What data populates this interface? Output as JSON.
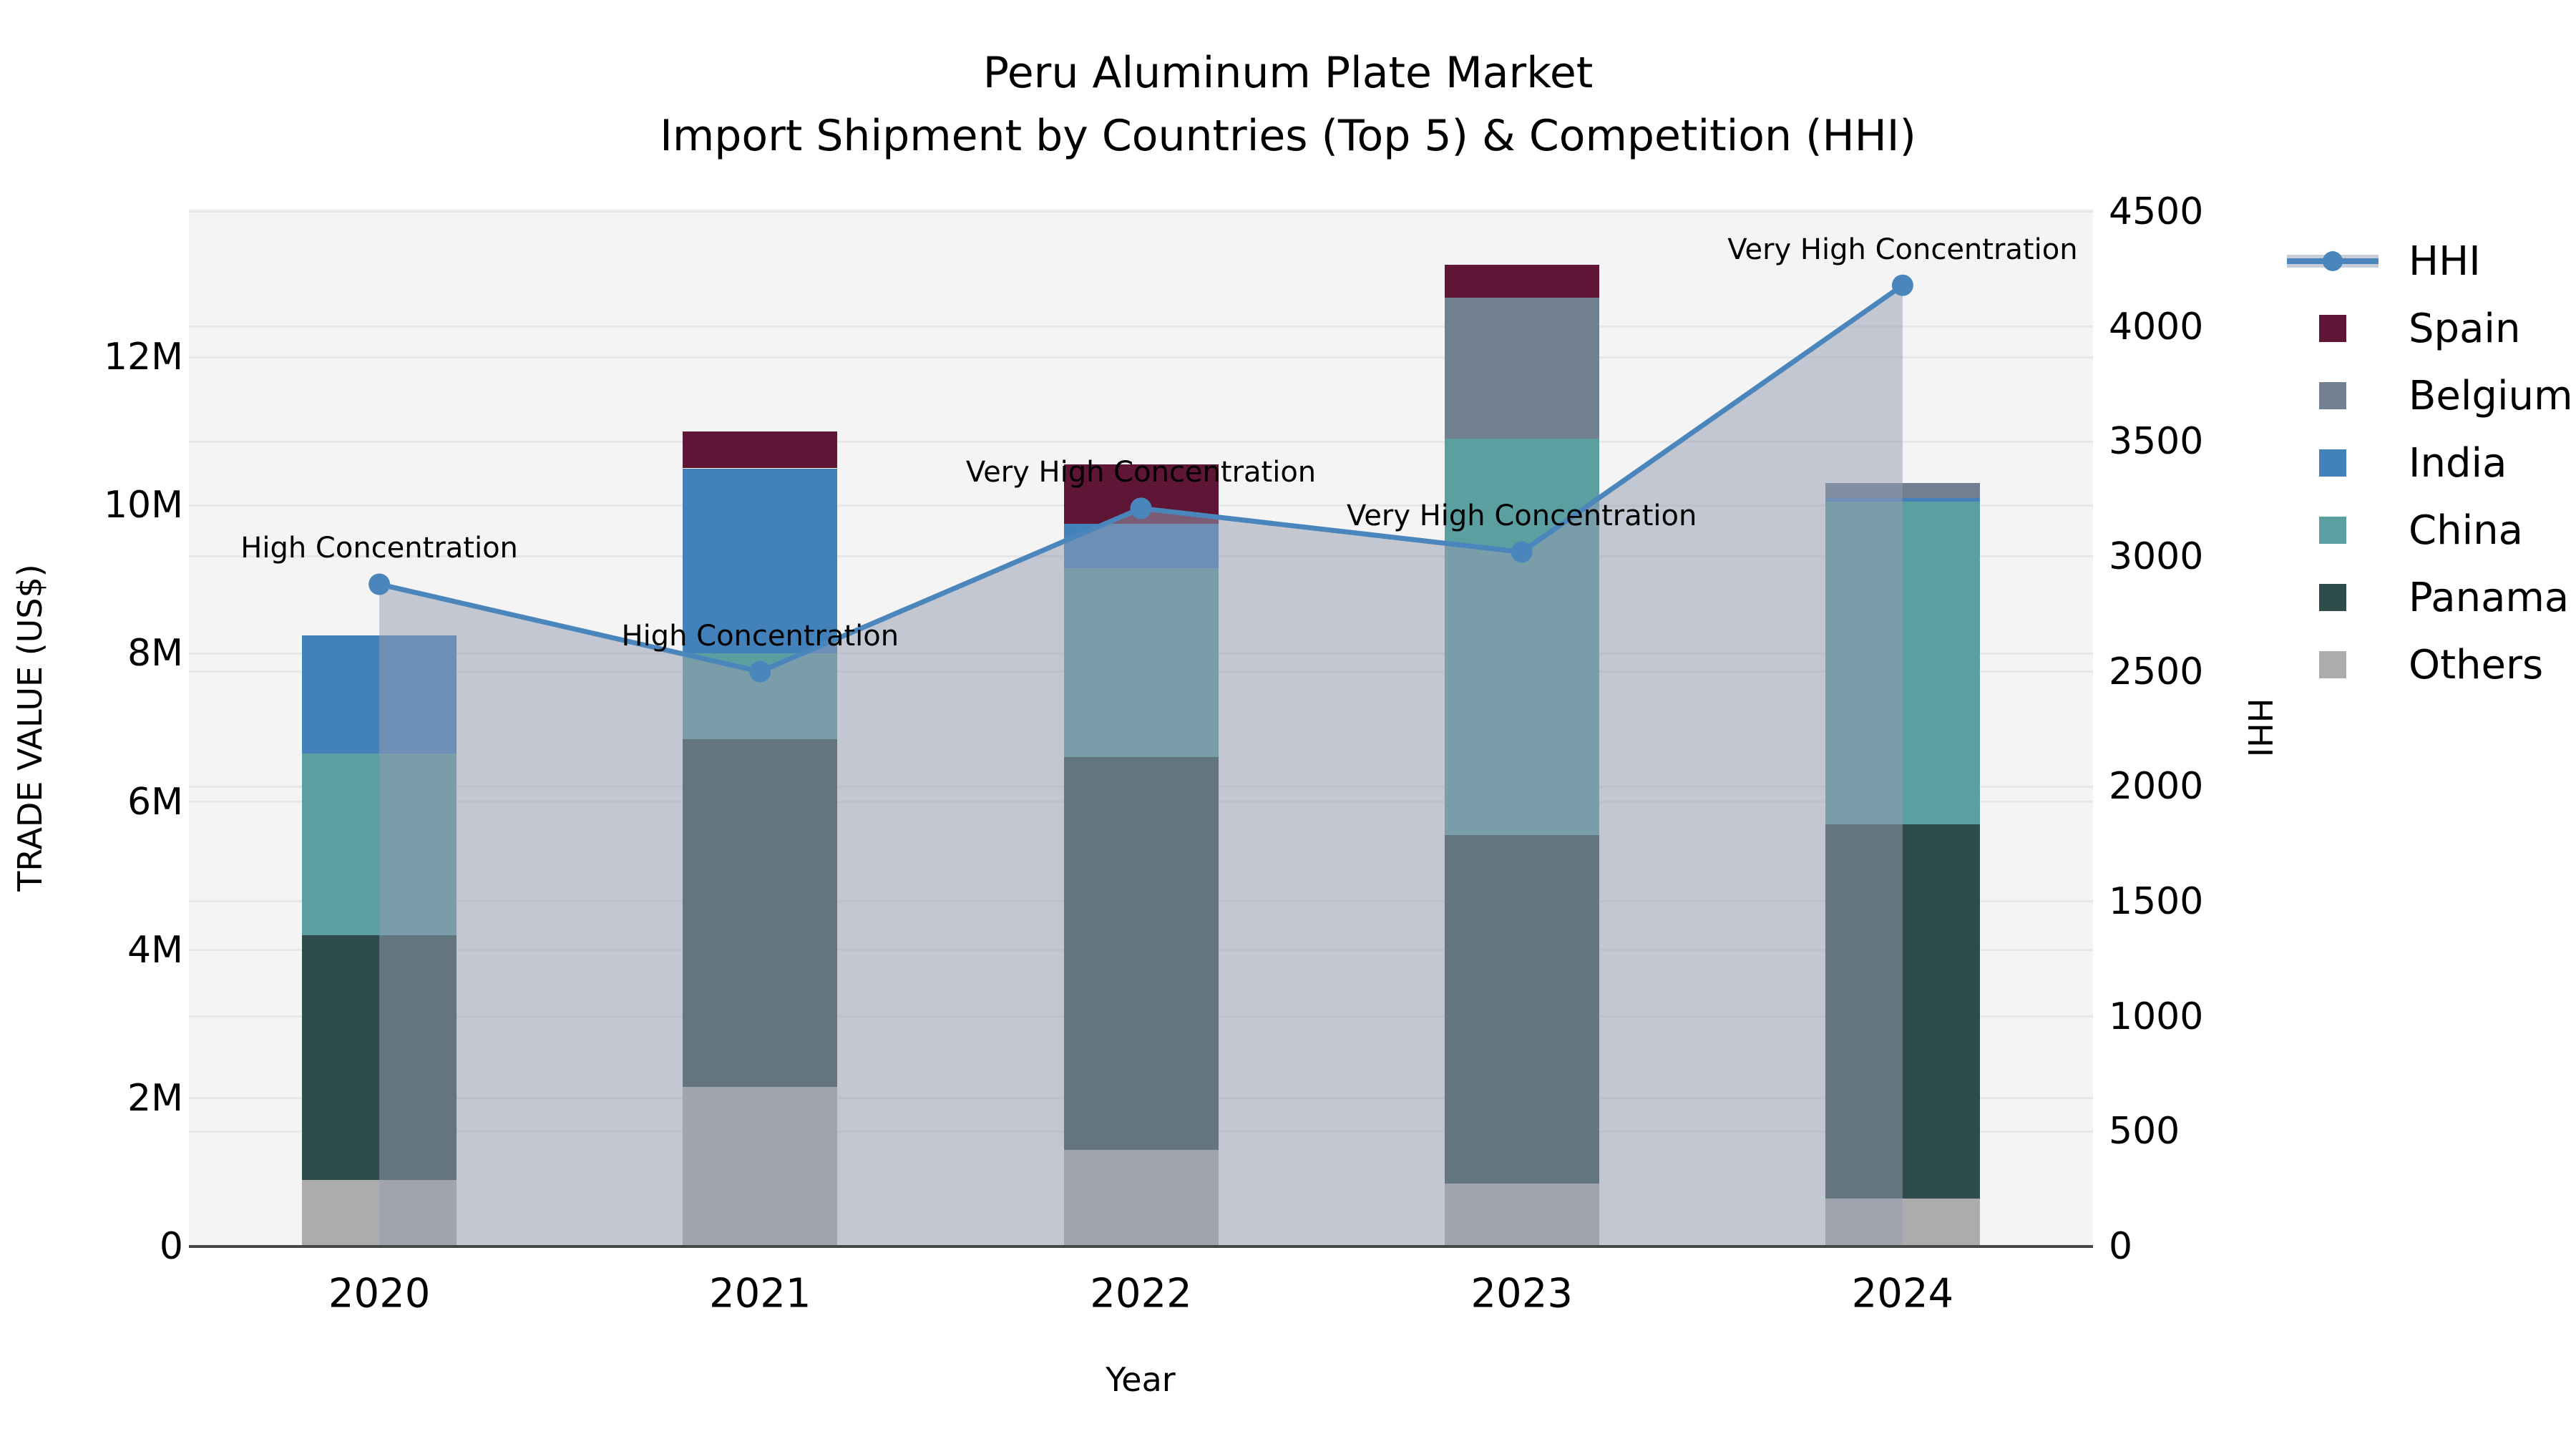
{
  "title": {
    "line1": "Peru Aluminum Plate Market",
    "line2": "Import Shipment by Countries (Top 5) & Competition (HHI)"
  },
  "axes": {
    "x": {
      "label": "Year"
    },
    "left": {
      "label": "TRADE VALUE (US$)",
      "max": 14,
      "ticks": [
        {
          "v": 0,
          "t": "0"
        },
        {
          "v": 2,
          "t": "2M"
        },
        {
          "v": 4,
          "t": "4M"
        },
        {
          "v": 6,
          "t": "6M"
        },
        {
          "v": 8,
          "t": "8M"
        },
        {
          "v": 10,
          "t": "10M"
        },
        {
          "v": 12,
          "t": "12M"
        }
      ]
    },
    "right": {
      "label": "HHI",
      "max": 4512,
      "ticks": [
        {
          "v": 0,
          "t": "0"
        },
        {
          "v": 500,
          "t": "500"
        },
        {
          "v": 1000,
          "t": "1000"
        },
        {
          "v": 1500,
          "t": "1500"
        },
        {
          "v": 2000,
          "t": "2000"
        },
        {
          "v": 2500,
          "t": "2500"
        },
        {
          "v": 3000,
          "t": "3000"
        },
        {
          "v": 3500,
          "t": "3500"
        },
        {
          "v": 4000,
          "t": "4000"
        },
        {
          "v": 4500,
          "t": "4500"
        }
      ]
    }
  },
  "chart_data": {
    "type": "combo: stacked bar (left axis) + line with markers and area fill (right axis)",
    "title": "Peru Aluminum Plate Market — Import Shipment by Countries (Top 5) & Competition (HHI)",
    "xlabel": "Year",
    "ylabel": "TRADE VALUE (US$)",
    "y2label": "HHI",
    "ylim": [
      0,
      14000000
    ],
    "y2lim": [
      0,
      4512
    ],
    "grid": true,
    "legend_position": "right-outside",
    "categories": [
      "2020",
      "2021",
      "2022",
      "2023",
      "2024"
    ],
    "values_unit": "million US$ (estimated from axis)",
    "stack_order_bottom_to_top": [
      "Others",
      "Panama",
      "China",
      "India",
      "Belgium",
      "Spain"
    ],
    "series": [
      {
        "name": "Others",
        "values": [
          0.9,
          2.15,
          1.3,
          0.85,
          0.65
        ]
      },
      {
        "name": "Panama",
        "values": [
          3.3,
          4.7,
          5.3,
          4.7,
          5.05
        ]
      },
      {
        "name": "China",
        "values": [
          2.45,
          1.15,
          2.55,
          5.35,
          4.35
        ]
      },
      {
        "name": "India",
        "values": [
          1.6,
          2.5,
          0.6,
          0.0,
          0.05
        ]
      },
      {
        "name": "Belgium",
        "values": [
          0.0,
          0.0,
          0.0,
          1.9,
          0.2
        ]
      },
      {
        "name": "Spain",
        "values": [
          0.0,
          0.5,
          0.8,
          0.45,
          0.0
        ]
      }
    ],
    "bar_totals": [
      8.25,
      11.0,
      10.55,
      13.25,
      10.3
    ],
    "line_series": {
      "name": "HHI",
      "axis": "right",
      "values": [
        2880,
        2500,
        3210,
        3020,
        4180
      ]
    },
    "annotations": [
      "High Concentration",
      "High Concentration",
      "Very High Concentration",
      "Very High Concentration",
      "Very High Concentration"
    ]
  },
  "legend": {
    "entries": [
      {
        "label": "HHI",
        "swatch": "line"
      },
      {
        "label": "Spain",
        "swatch": "spain"
      },
      {
        "label": "Belgium",
        "swatch": "belgium"
      },
      {
        "label": "India",
        "swatch": "india"
      },
      {
        "label": "China",
        "swatch": "china"
      },
      {
        "label": "Panama",
        "swatch": "panama"
      },
      {
        "label": "Others",
        "swatch": "others"
      }
    ]
  },
  "colors": {
    "spain": "#5F1535",
    "belgium": "#708090",
    "india": "#4381BA",
    "china": "#5C9FA0",
    "panama": "#2E4C49",
    "others": "#ACACAC",
    "hhi_line": "#4A86BC",
    "hhi_fill": "rgba(147,157,178,0.52)",
    "plot_bg": "#F4F4F4",
    "grid": "#E7E7E7",
    "spine": "#474747",
    "text": "#000000"
  }
}
